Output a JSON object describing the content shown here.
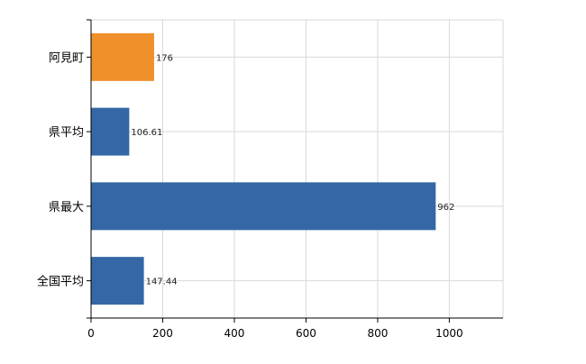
{
  "chart_data": {
    "type": "bar",
    "orientation": "horizontal",
    "categories": [
      "阿見町",
      "県平均",
      "県最大",
      "全国平均"
    ],
    "values": [
      176,
      106.61,
      962,
      147.44
    ],
    "data_labels": [
      "176",
      "106.61",
      "962",
      "147.44"
    ],
    "bar_colors": [
      "#f0902b",
      "#3567a6",
      "#3567a6",
      "#3567a6"
    ],
    "xlim": [
      0,
      1150
    ],
    "xticks": [
      0,
      200,
      400,
      600,
      800,
      1000
    ],
    "tick_labels": [
      "0",
      "200",
      "400",
      "600",
      "800",
      "1000"
    ],
    "grid": true,
    "title": "",
    "xlabel": "",
    "ylabel": ""
  }
}
